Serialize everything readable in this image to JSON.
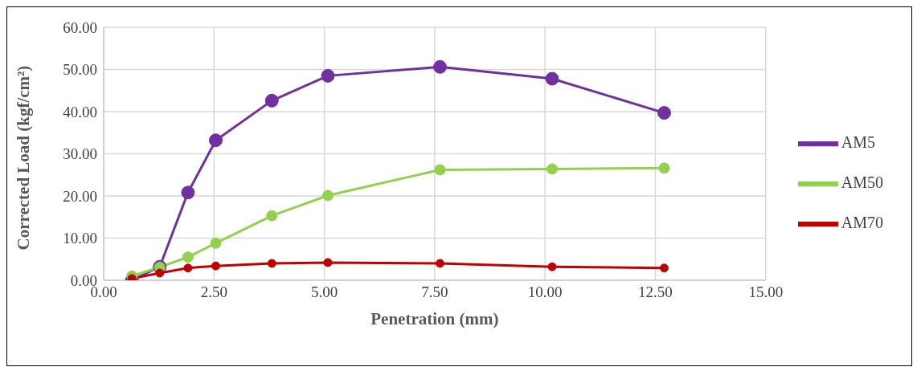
{
  "chart_data": {
    "type": "line",
    "xlabel": "Penetration (mm)",
    "ylabel": "Corrected Load (kgf/cm²)",
    "x": [
      0.64,
      1.27,
      1.91,
      2.54,
      3.81,
      5.08,
      7.62,
      10.16,
      12.7
    ],
    "series": [
      {
        "name": "AM5",
        "color": "#7030a0",
        "values": [
          0,
          3.2,
          20.8,
          33.2,
          42.6,
          48.5,
          50.6,
          47.8,
          39.7
        ]
      },
      {
        "name": "AM50",
        "color": "#92d050",
        "values": [
          1.0,
          3.1,
          5.5,
          8.8,
          15.3,
          20.1,
          26.2,
          26.4,
          26.6
        ]
      },
      {
        "name": "AM70",
        "color": "#c00000",
        "values": [
          0.4,
          1.7,
          2.9,
          3.4,
          4.0,
          4.2,
          4.0,
          3.2,
          2.9
        ]
      }
    ],
    "xlim": [
      0,
      15
    ],
    "xticks": [
      {
        "value": 0,
        "label": "0.00"
      },
      {
        "value": 2.5,
        "label": "2.50"
      },
      {
        "value": 5,
        "label": "5.00"
      },
      {
        "value": 7.5,
        "label": "7.50"
      },
      {
        "value": 10,
        "label": "10.00"
      },
      {
        "value": 12.5,
        "label": "12.50"
      },
      {
        "value": 15,
        "label": "15.00"
      }
    ],
    "ylim": [
      0,
      60
    ],
    "yticks": [
      {
        "value": 0,
        "label": "0.00"
      },
      {
        "value": 10,
        "label": "10.00"
      },
      {
        "value": 20,
        "label": "20.00"
      },
      {
        "value": 30,
        "label": "30.00"
      },
      {
        "value": 40,
        "label": "40.00"
      },
      {
        "value": 50,
        "label": "50.00"
      },
      {
        "value": 60,
        "label": "60.00"
      }
    ],
    "grid": true,
    "legend": "right",
    "marker": "circle",
    "line_style": "solid"
  }
}
